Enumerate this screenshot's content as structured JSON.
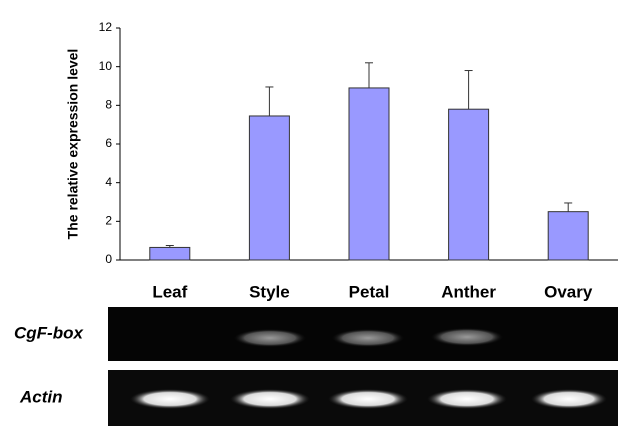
{
  "chart_data": {
    "type": "bar",
    "y_label": "The relative expression level",
    "categories": [
      "Leaf",
      "Style",
      "Petal",
      "Anther",
      "Ovary"
    ],
    "values": [
      0.65,
      7.45,
      8.9,
      7.8,
      2.5
    ],
    "errors": [
      0.1,
      1.5,
      1.3,
      2.0,
      0.45
    ],
    "color": "#9999ff",
    "ylim": [
      0,
      12
    ],
    "yticks": [
      0,
      2,
      4,
      6,
      8,
      10,
      12
    ],
    "gel_labels": [
      "CgF-box",
      "Actin"
    ]
  }
}
